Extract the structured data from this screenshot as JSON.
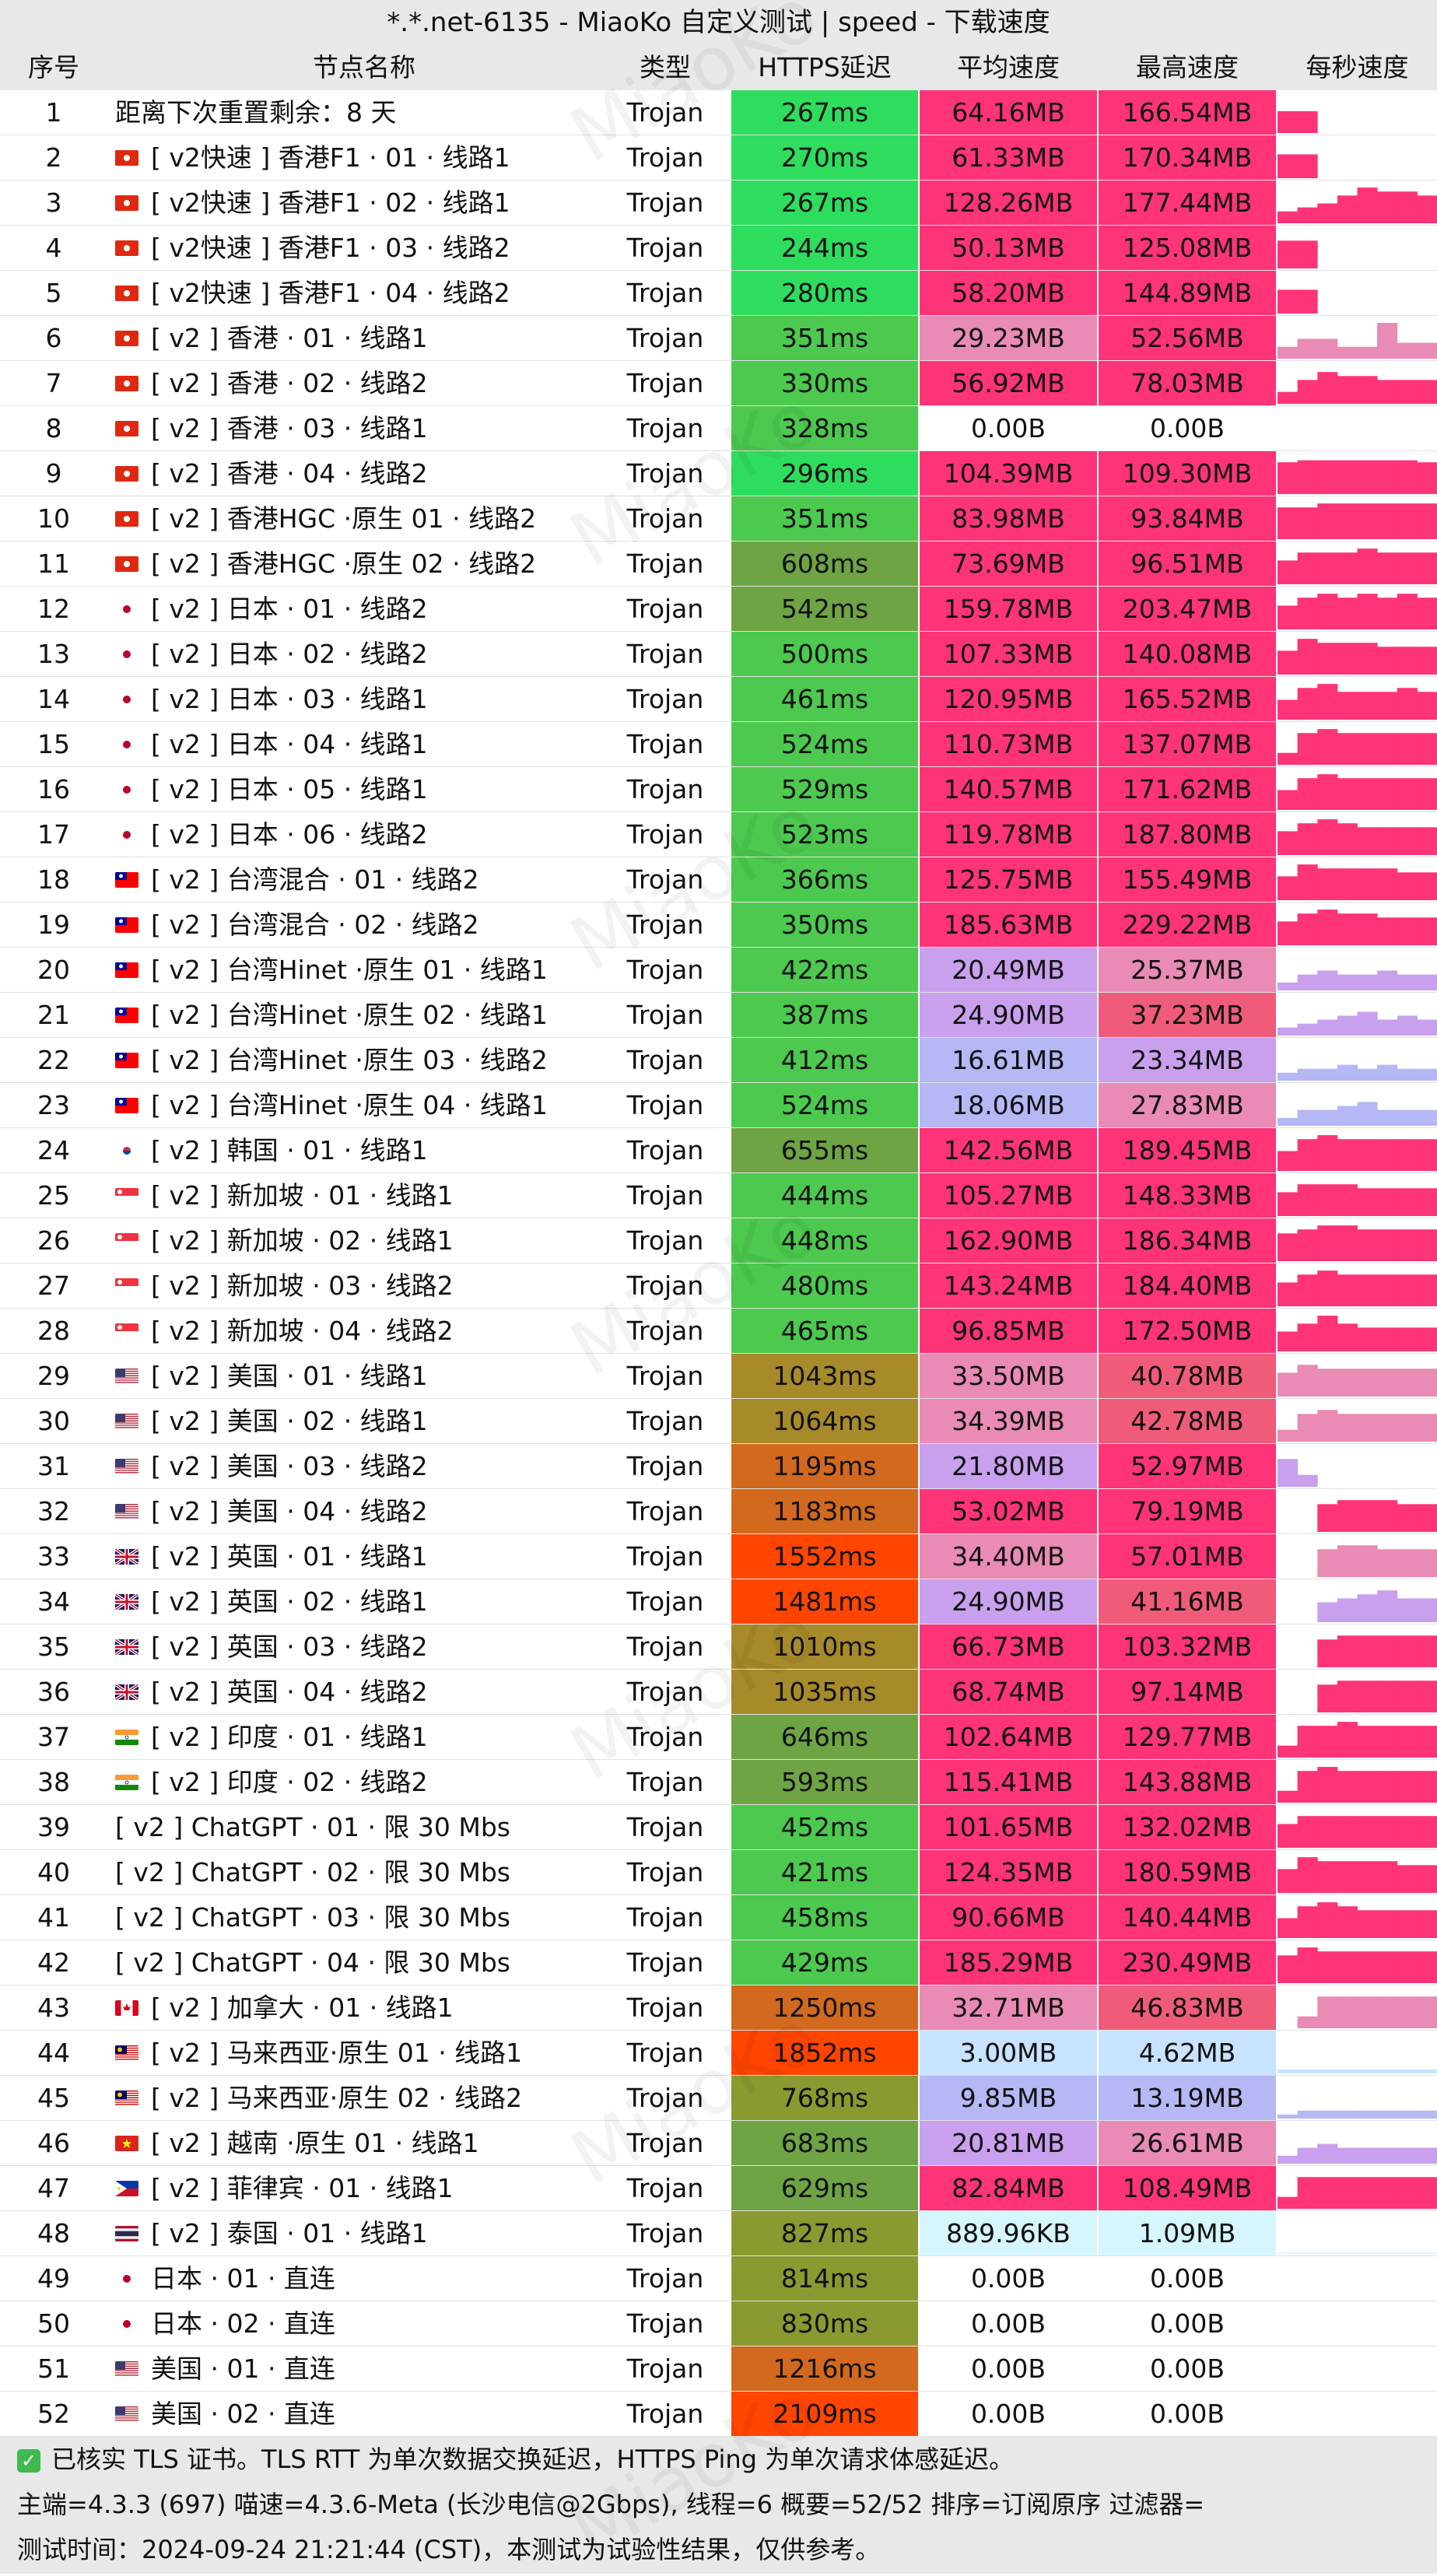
{
  "title": "*.*.net-6135 - MiaoKo 自定义测试 | speed - 下载速度",
  "watermark": "MiaoKo",
  "columns": {
    "no": "序号",
    "name": "节点名称",
    "type": "类型",
    "latency": "HTTPS延迟",
    "avg_speed": "平均速度",
    "max_speed": "最高速度",
    "per_second": "每秒速度"
  },
  "colors": {
    "latency_fast": "#2edd5e",
    "latency_good": "#4cc94e",
    "latency_mid": "#6ea444",
    "latency_slow": "#8a9a30",
    "latency_slower": "#a78a2a",
    "latency_bad": "#d2691e",
    "latency_worst": "#ff4500",
    "speed_high": "#ff3378",
    "speed_mid": "#f05b7a",
    "speed_midlow": "#e98bb4",
    "speed_low": "#c8a0ee",
    "speed_lower": "#b5b8f5",
    "speed_lowest": "#c8e3ff",
    "speed_tiny": "#d6f6ff",
    "speed_zero": "#ffffff"
  },
  "rows": [
    {
      "no": "1",
      "flag": "",
      "name": "距离下次重置剩余：8 天",
      "type": "Trojan",
      "latency": "267ms",
      "avg": "64.16MB",
      "max": "166.54MB",
      "spark": [
        0.55,
        0.55,
        0,
        0,
        0,
        0,
        0,
        0
      ]
    },
    {
      "no": "2",
      "flag": "hk",
      "name": "[ v2快速 ] 香港F1 · 01 · 线路1",
      "type": "Trojan",
      "latency": "270ms",
      "avg": "61.33MB",
      "max": "170.34MB",
      "spark": [
        0.6,
        0.6,
        0,
        0,
        0,
        0,
        0,
        0
      ]
    },
    {
      "no": "3",
      "flag": "hk",
      "name": "[ v2快速 ] 香港F1 · 02 · 线路1",
      "type": "Trojan",
      "latency": "267ms",
      "avg": "128.26MB",
      "max": "177.44MB",
      "spark": [
        0.3,
        0.4,
        0.5,
        0.7,
        0.9,
        0.8,
        0.8,
        0.7
      ]
    },
    {
      "no": "4",
      "flag": "hk",
      "name": "[ v2快速 ] 香港F1 · 03 · 线路2",
      "type": "Trojan",
      "latency": "244ms",
      "avg": "50.13MB",
      "max": "125.08MB",
      "spark": [
        0.7,
        0.7,
        0,
        0,
        0,
        0,
        0,
        0
      ]
    },
    {
      "no": "5",
      "flag": "hk",
      "name": "[ v2快速 ] 香港F1 · 04 · 线路2",
      "type": "Trojan",
      "latency": "280ms",
      "avg": "58.20MB",
      "max": "144.89MB",
      "spark": [
        0.6,
        0.6,
        0,
        0,
        0,
        0,
        0,
        0
      ]
    },
    {
      "no": "6",
      "flag": "hk",
      "name": "[ v2 ] 香港 · 01 · 线路1",
      "type": "Trojan",
      "latency": "351ms",
      "avg": "29.23MB",
      "max": "52.56MB",
      "spark": [
        0.3,
        0.5,
        0.5,
        0.3,
        0.3,
        0.9,
        0.4,
        0.4
      ]
    },
    {
      "no": "7",
      "flag": "hk",
      "name": "[ v2 ] 香港 · 02 · 线路2",
      "type": "Trojan",
      "latency": "330ms",
      "avg": "56.92MB",
      "max": "78.03MB",
      "spark": [
        0.3,
        0.6,
        0.8,
        0.7,
        0.7,
        0.6,
        0.6,
        0.6
      ]
    },
    {
      "no": "8",
      "flag": "hk",
      "name": "[ v2 ] 香港 · 03 · 线路1",
      "type": "Trojan",
      "latency": "328ms",
      "avg": "0.00B",
      "max": "0.00B",
      "spark": [
        0,
        0,
        0,
        0,
        0,
        0,
        0,
        0
      ]
    },
    {
      "no": "9",
      "flag": "hk",
      "name": "[ v2 ] 香港 · 04 · 线路2",
      "type": "Trojan",
      "latency": "296ms",
      "avg": "104.39MB",
      "max": "109.30MB",
      "spark": [
        0.8,
        0.85,
        0.85,
        0.85,
        0.85,
        0.85,
        0.85,
        0.8
      ]
    },
    {
      "no": "10",
      "flag": "hk",
      "name": "[ v2 ] 香港HGC ·原生  01 · 线路2",
      "type": "Trojan",
      "latency": "351ms",
      "avg": "83.98MB",
      "max": "93.84MB",
      "spark": [
        0.8,
        0.8,
        0.9,
        0.9,
        0.9,
        0.9,
        0.9,
        0.9
      ]
    },
    {
      "no": "11",
      "flag": "hk",
      "name": "[ v2 ] 香港HGC ·原生  02 · 线路2",
      "type": "Trojan",
      "latency": "608ms",
      "avg": "73.69MB",
      "max": "96.51MB",
      "spark": [
        0.6,
        0.8,
        0.8,
        0.8,
        0.9,
        0.8,
        0.8,
        0.8
      ]
    },
    {
      "no": "12",
      "flag": "jp",
      "name": "[ v2 ] 日本 · 01 · 线路2",
      "type": "Trojan",
      "latency": "542ms",
      "avg": "159.78MB",
      "max": "203.47MB",
      "spark": [
        0.6,
        0.8,
        0.9,
        0.8,
        0.9,
        0.8,
        0.9,
        0.8
      ]
    },
    {
      "no": "13",
      "flag": "jp",
      "name": "[ v2 ] 日本 · 02 · 线路2",
      "type": "Trojan",
      "latency": "500ms",
      "avg": "107.33MB",
      "max": "140.08MB",
      "spark": [
        0.6,
        0.9,
        0.8,
        0.8,
        0.8,
        0.7,
        0.7,
        0.7
      ]
    },
    {
      "no": "14",
      "flag": "jp",
      "name": "[ v2 ] 日本 · 03 · 线路1",
      "type": "Trojan",
      "latency": "461ms",
      "avg": "120.95MB",
      "max": "165.52MB",
      "spark": [
        0.5,
        0.8,
        0.9,
        0.7,
        0.7,
        0.7,
        0.8,
        0.7
      ]
    },
    {
      "no": "15",
      "flag": "jp",
      "name": "[ v2 ] 日本 · 04 · 线路1",
      "type": "Trojan",
      "latency": "524ms",
      "avg": "110.73MB",
      "max": "137.07MB",
      "spark": [
        0.3,
        0.8,
        0.9,
        0.8,
        0.8,
        0.8,
        0.8,
        0.8
      ]
    },
    {
      "no": "16",
      "flag": "jp",
      "name": "[ v2 ] 日本 · 05 · 线路1",
      "type": "Trojan",
      "latency": "529ms",
      "avg": "140.57MB",
      "max": "171.62MB",
      "spark": [
        0.5,
        0.8,
        0.9,
        0.8,
        0.8,
        0.8,
        0.8,
        0.8
      ]
    },
    {
      "no": "17",
      "flag": "jp",
      "name": "[ v2 ] 日本 · 06 · 线路2",
      "type": "Trojan",
      "latency": "523ms",
      "avg": "119.78MB",
      "max": "187.80MB",
      "spark": [
        0.6,
        0.8,
        0.9,
        0.8,
        0.7,
        0.7,
        0.7,
        0.7
      ]
    },
    {
      "no": "18",
      "flag": "tw",
      "name": "[ v2 ] 台湾混合 · 01 · 线路2",
      "type": "Trojan",
      "latency": "366ms",
      "avg": "125.75MB",
      "max": "155.49MB",
      "spark": [
        0.6,
        0.9,
        0.8,
        0.8,
        0.8,
        0.8,
        0.7,
        0.7
      ]
    },
    {
      "no": "19",
      "flag": "tw",
      "name": "[ v2 ] 台湾混合 · 02 · 线路2",
      "type": "Trojan",
      "latency": "350ms",
      "avg": "185.63MB",
      "max": "229.22MB",
      "spark": [
        0.6,
        0.8,
        0.9,
        0.8,
        0.8,
        0.7,
        0.7,
        0.7
      ]
    },
    {
      "no": "20",
      "flag": "tw",
      "name": "[ v2 ] 台湾Hinet ·原生  01 · 线路1",
      "type": "Trojan",
      "latency": "422ms",
      "avg": "20.49MB",
      "max": "25.37MB",
      "spark": [
        0.2,
        0.4,
        0.5,
        0.4,
        0.4,
        0.5,
        0.4,
        0.4
      ]
    },
    {
      "no": "21",
      "flag": "tw",
      "name": "[ v2 ] 台湾Hinet ·原生  02 · 线路1",
      "type": "Trojan",
      "latency": "387ms",
      "avg": "24.90MB",
      "max": "37.23MB",
      "spark": [
        0.2,
        0.3,
        0.4,
        0.5,
        0.6,
        0.4,
        0.5,
        0.4
      ]
    },
    {
      "no": "22",
      "flag": "tw",
      "name": "[ v2 ] 台湾Hinet ·原生  03 · 线路2",
      "type": "Trojan",
      "latency": "412ms",
      "avg": "16.61MB",
      "max": "23.34MB",
      "spark": [
        0.2,
        0.3,
        0.3,
        0.4,
        0.3,
        0.4,
        0.3,
        0.3
      ]
    },
    {
      "no": "23",
      "flag": "tw",
      "name": "[ v2 ] 台湾Hinet ·原生  04 · 线路1",
      "type": "Trojan",
      "latency": "524ms",
      "avg": "18.06MB",
      "max": "27.83MB",
      "spark": [
        0.2,
        0.4,
        0.4,
        0.5,
        0.6,
        0.4,
        0.4,
        0.4
      ]
    },
    {
      "no": "24",
      "flag": "kr",
      "name": "[ v2 ] 韩国 · 01 · 线路1",
      "type": "Trojan",
      "latency": "655ms",
      "avg": "142.56MB",
      "max": "189.45MB",
      "spark": [
        0.5,
        0.8,
        0.9,
        0.8,
        0.8,
        0.8,
        0.8,
        0.8
      ]
    },
    {
      "no": "25",
      "flag": "sg",
      "name": "[ v2 ] 新加坡 · 01 · 线路1",
      "type": "Trojan",
      "latency": "444ms",
      "avg": "105.27MB",
      "max": "148.33MB",
      "spark": [
        0.6,
        0.8,
        0.8,
        0.8,
        0.7,
        0.7,
        0.7,
        0.7
      ]
    },
    {
      "no": "26",
      "flag": "sg",
      "name": "[ v2 ] 新加坡 · 02 · 线路1",
      "type": "Trojan",
      "latency": "448ms",
      "avg": "162.90MB",
      "max": "186.34MB",
      "spark": [
        0.7,
        0.8,
        0.9,
        0.9,
        0.8,
        0.8,
        0.8,
        0.8
      ]
    },
    {
      "no": "27",
      "flag": "sg",
      "name": "[ v2 ] 新加坡 · 03 · 线路2",
      "type": "Trojan",
      "latency": "480ms",
      "avg": "143.24MB",
      "max": "184.40MB",
      "spark": [
        0.6,
        0.8,
        0.9,
        0.8,
        0.8,
        0.8,
        0.8,
        0.8
      ]
    },
    {
      "no": "28",
      "flag": "sg",
      "name": "[ v2 ] 新加坡 · 04 · 线路2",
      "type": "Trojan",
      "latency": "465ms",
      "avg": "96.85MB",
      "max": "172.50MB",
      "spark": [
        0.5,
        0.7,
        0.9,
        0.7,
        0.6,
        0.6,
        0.6,
        0.6
      ]
    },
    {
      "no": "29",
      "flag": "us",
      "name": "[ v2 ] 美国 · 01 · 线路1",
      "type": "Trojan",
      "latency": "1043ms",
      "avg": "33.50MB",
      "max": "40.78MB",
      "spark": [
        0.6,
        0.8,
        0.7,
        0.7,
        0.7,
        0.7,
        0.7,
        0.7
      ]
    },
    {
      "no": "30",
      "flag": "us",
      "name": "[ v2 ] 美国 · 02 · 线路1",
      "type": "Trojan",
      "latency": "1064ms",
      "avg": "34.39MB",
      "max": "42.78MB",
      "spark": [
        0.3,
        0.7,
        0.8,
        0.7,
        0.7,
        0.7,
        0.7,
        0.7
      ]
    },
    {
      "no": "31",
      "flag": "us",
      "name": "[ v2 ] 美国 · 03 · 线路2",
      "type": "Trojan",
      "latency": "1195ms",
      "avg": "21.80MB",
      "max": "52.97MB",
      "spark": [
        0.7,
        0.3,
        0,
        0,
        0,
        0,
        0,
        0
      ]
    },
    {
      "no": "32",
      "flag": "us",
      "name": "[ v2 ] 美国 · 04 · 线路2",
      "type": "Trojan",
      "latency": "1183ms",
      "avg": "53.02MB",
      "max": "79.19MB",
      "spark": [
        0,
        0,
        0.7,
        0.8,
        0.8,
        0.8,
        0.7,
        0.7
      ]
    },
    {
      "no": "33",
      "flag": "gb",
      "name": "[ v2 ] 英国 · 01 · 线路1",
      "type": "Trojan",
      "latency": "1552ms",
      "avg": "34.40MB",
      "max": "57.01MB",
      "spark": [
        0,
        0,
        0.7,
        0.8,
        0.8,
        0.7,
        0.7,
        0.7
      ]
    },
    {
      "no": "34",
      "flag": "gb",
      "name": "[ v2 ] 英国 · 02 · 线路1",
      "type": "Trojan",
      "latency": "1481ms",
      "avg": "24.90MB",
      "max": "41.16MB",
      "spark": [
        0,
        0,
        0.5,
        0.6,
        0.7,
        0.8,
        0.6,
        0.6
      ]
    },
    {
      "no": "35",
      "flag": "gb",
      "name": "[ v2 ] 英国 · 03 · 线路2",
      "type": "Trojan",
      "latency": "1010ms",
      "avg": "66.73MB",
      "max": "103.32MB",
      "spark": [
        0,
        0,
        0.7,
        0.8,
        0.8,
        0.8,
        0.8,
        0.8
      ]
    },
    {
      "no": "36",
      "flag": "gb",
      "name": "[ v2 ] 英国 · 04 · 线路2",
      "type": "Trojan",
      "latency": "1035ms",
      "avg": "68.74MB",
      "max": "97.14MB",
      "spark": [
        0,
        0,
        0.7,
        0.8,
        0.8,
        0.8,
        0.8,
        0.8
      ]
    },
    {
      "no": "37",
      "flag": "in",
      "name": "[ v2 ] 印度 · 01 · 线路1",
      "type": "Trojan",
      "latency": "646ms",
      "avg": "102.64MB",
      "max": "129.77MB",
      "spark": [
        0.3,
        0.8,
        0.8,
        0.9,
        0.8,
        0.8,
        0.8,
        0.8
      ]
    },
    {
      "no": "38",
      "flag": "in",
      "name": "[ v2 ] 印度 · 02 · 线路2",
      "type": "Trojan",
      "latency": "593ms",
      "avg": "115.41MB",
      "max": "143.88MB",
      "spark": [
        0.3,
        0.8,
        0.9,
        0.8,
        0.8,
        0.8,
        0.8,
        0.8
      ]
    },
    {
      "no": "39",
      "flag": "",
      "name": "[ v2 ] ChatGPT · 01 · 限 30 Mbs",
      "type": "Trojan",
      "latency": "452ms",
      "avg": "101.65MB",
      "max": "132.02MB",
      "spark": [
        0.6,
        0.8,
        0.8,
        0.8,
        0.8,
        0.8,
        0.8,
        0.8
      ]
    },
    {
      "no": "40",
      "flag": "",
      "name": "[ v2 ] ChatGPT · 02 · 限 30 Mbs",
      "type": "Trojan",
      "latency": "421ms",
      "avg": "124.35MB",
      "max": "180.59MB",
      "spark": [
        0.6,
        0.9,
        0.8,
        0.8,
        0.8,
        0.8,
        0.7,
        0.7
      ]
    },
    {
      "no": "41",
      "flag": "",
      "name": "[ v2 ] ChatGPT · 03 · 限 30 Mbs",
      "type": "Trojan",
      "latency": "458ms",
      "avg": "90.66MB",
      "max": "140.44MB",
      "spark": [
        0.5,
        0.8,
        0.9,
        0.8,
        0.7,
        0.7,
        0.7,
        0.7
      ]
    },
    {
      "no": "42",
      "flag": "",
      "name": "[ v2 ] ChatGPT · 04 · 限 30 Mbs",
      "type": "Trojan",
      "latency": "429ms",
      "avg": "185.29MB",
      "max": "230.49MB",
      "spark": [
        0.7,
        0.9,
        0.8,
        0.8,
        0.8,
        0.8,
        0.8,
        0.8
      ]
    },
    {
      "no": "43",
      "flag": "ca",
      "name": "[ v2 ] 加拿大 · 01 · 线路1",
      "type": "Trojan",
      "latency": "1250ms",
      "avg": "32.71MB",
      "max": "46.83MB",
      "spark": [
        0,
        0.3,
        0.8,
        0.8,
        0.8,
        0.8,
        0.8,
        0.8
      ]
    },
    {
      "no": "44",
      "flag": "my",
      "name": "[ v2 ] 马来西亚·原生  01 · 线路1",
      "type": "Trojan",
      "latency": "1852ms",
      "avg": "3.00MB",
      "max": "4.62MB",
      "spark": [
        0.1,
        0.1,
        0.1,
        0.1,
        0.1,
        0.1,
        0.1,
        0.1
      ]
    },
    {
      "no": "45",
      "flag": "my",
      "name": "[ v2 ] 马来西亚·原生  02 · 线路2",
      "type": "Trojan",
      "latency": "768ms",
      "avg": "9.85MB",
      "max": "13.19MB",
      "spark": [
        0.1,
        0.2,
        0.2,
        0.2,
        0.2,
        0.2,
        0.2,
        0.2
      ]
    },
    {
      "no": "46",
      "flag": "vn",
      "name": "[ v2 ] 越南 ·原生 01 · 线路1",
      "type": "Trojan",
      "latency": "683ms",
      "avg": "20.81MB",
      "max": "26.61MB",
      "spark": [
        0.2,
        0.4,
        0.5,
        0.4,
        0.4,
        0.4,
        0.4,
        0.4
      ]
    },
    {
      "no": "47",
      "flag": "ph",
      "name": "[ v2 ] 菲律宾 · 01 · 线路1",
      "type": "Trojan",
      "latency": "629ms",
      "avg": "82.84MB",
      "max": "108.49MB",
      "spark": [
        0.3,
        0.8,
        0.8,
        0.8,
        0.8,
        0.8,
        0.8,
        0.8
      ]
    },
    {
      "no": "48",
      "flag": "th",
      "name": "[ v2 ] 泰国 · 01 · 线路1",
      "type": "Trojan",
      "latency": "827ms",
      "avg": "889.96KB",
      "max": "1.09MB",
      "spark": [
        0.02,
        0.02,
        0.02,
        0.02,
        0.02,
        0.02,
        0.02,
        0.02
      ]
    },
    {
      "no": "49",
      "flag": "jp",
      "name": "日本 · 01 · 直连",
      "type": "Trojan",
      "latency": "814ms",
      "avg": "0.00B",
      "max": "0.00B",
      "spark": [
        0,
        0,
        0,
        0,
        0,
        0,
        0,
        0
      ]
    },
    {
      "no": "50",
      "flag": "jp",
      "name": "日本 · 02 · 直连",
      "type": "Trojan",
      "latency": "830ms",
      "avg": "0.00B",
      "max": "0.00B",
      "spark": [
        0,
        0,
        0,
        0,
        0,
        0,
        0,
        0
      ]
    },
    {
      "no": "51",
      "flag": "us",
      "name": "美国 · 01 · 直连",
      "type": "Trojan",
      "latency": "1216ms",
      "avg": "0.00B",
      "max": "0.00B",
      "spark": [
        0,
        0,
        0,
        0,
        0,
        0,
        0,
        0
      ]
    },
    {
      "no": "52",
      "flag": "us",
      "name": "美国 · 02 · 直连",
      "type": "Trojan",
      "latency": "2109ms",
      "avg": "0.00B",
      "max": "0.00B",
      "spark": [
        0,
        0,
        0,
        0,
        0,
        0,
        0,
        0
      ]
    }
  ],
  "footer": {
    "line1": "已核实 TLS 证书。TLS RTT 为单次数据交换延迟，HTTPS Ping 为单次请求体感延迟。",
    "line2": "主端=4.3.3 (697) 喵速=4.3.6-Meta (长沙电信@2Gbps), 线程=6 概要=52/52 排序=订阅原序 过滤器=",
    "line3": "测试时间：2024-09-24 21:21:44 (CST)，本测试为试验性结果，仅供参考。"
  }
}
